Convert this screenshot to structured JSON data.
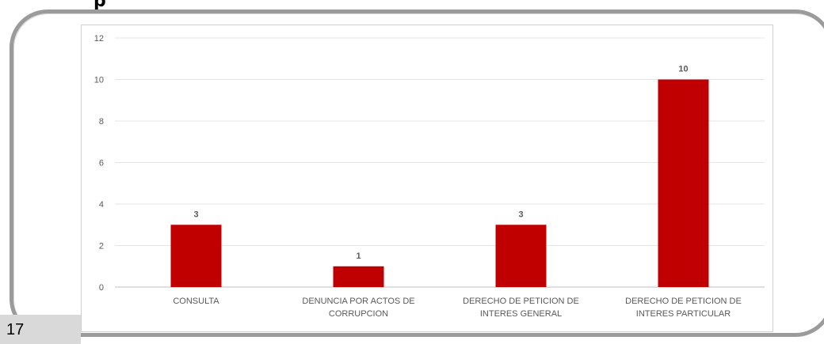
{
  "page_number": "17",
  "colors": {
    "bar": "#c00000",
    "grid": "#e4e4e4",
    "axis": "#bfbfbf",
    "text": "#595959"
  },
  "chart_data": {
    "type": "bar",
    "title": "",
    "xlabel": "",
    "ylabel": "",
    "ylim": [
      0,
      12
    ],
    "yticks": [
      0,
      2,
      4,
      6,
      8,
      10,
      12
    ],
    "grid": true,
    "categories": [
      [
        "CONSULTA"
      ],
      [
        "DENUNCIA POR ACTOS DE",
        "CORRUPCION"
      ],
      [
        "DERECHO DE PETICION DE",
        "INTERES GENERAL"
      ],
      [
        "DERECHO DE PETICION DE",
        "INTERES PARTICULAR"
      ]
    ],
    "values": [
      3,
      1,
      3,
      10
    ],
    "data_labels": [
      "3",
      "1",
      "3",
      "10"
    ]
  }
}
